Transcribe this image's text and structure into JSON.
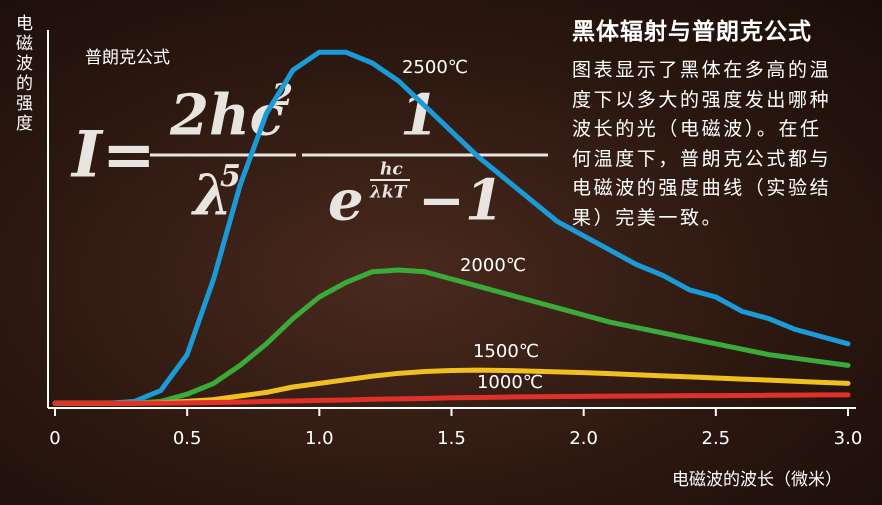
{
  "chart_data": {
    "type": "line",
    "y_label": "电磁波的强度",
    "x_label": "电磁波的波长（微米）",
    "formula_label": "普朗克公式",
    "formula": {
      "lhs": "I=",
      "num1": "2hc",
      "num1_sup": "2",
      "den1": "λ",
      "den1_sup": "5",
      "num2": "1",
      "den2_base": "e",
      "exp_num": "hc",
      "exp_den": "λkT",
      "den2_tail": "−1"
    },
    "x": [
      0,
      0.1,
      0.2,
      0.3,
      0.4,
      0.5,
      0.6,
      0.7,
      0.8,
      0.9,
      1.0,
      1.1,
      1.2,
      1.3,
      1.4,
      1.5,
      1.6,
      1.7,
      1.8,
      1.9,
      2.0,
      2.1,
      2.2,
      2.3,
      2.4,
      2.5,
      2.6,
      2.7,
      2.8,
      2.9,
      3.0
    ],
    "series": [
      {
        "name": "2500℃",
        "color": "#1a9ad6",
        "values": [
          0.5,
          0.5,
          0.5,
          1,
          4,
          14,
          35,
          61,
          81,
          93,
          98,
          98,
          95,
          90,
          83,
          76,
          69,
          63,
          57,
          51,
          47,
          43,
          39,
          36,
          32,
          30,
          26,
          24,
          21,
          19,
          17
        ]
      },
      {
        "name": "2000℃",
        "color": "#3aaa3a",
        "values": [
          0.5,
          0.5,
          0.5,
          0.5,
          1,
          3,
          6,
          11,
          17,
          24,
          30,
          34,
          37,
          37.5,
          37,
          35,
          33,
          31,
          29,
          27,
          25,
          23,
          21.5,
          20,
          18.5,
          17,
          15.5,
          14,
          13,
          12,
          11
        ]
      },
      {
        "name": "1500℃",
        "color": "#f0c020",
        "values": [
          0.5,
          0.5,
          0.5,
          0.5,
          0.6,
          1,
          1.5,
          2.5,
          3.5,
          5,
          6,
          7,
          8,
          8.8,
          9.3,
          9.6,
          9.7,
          9.6,
          9.4,
          9.2,
          9,
          8.7,
          8.4,
          8.1,
          7.8,
          7.5,
          7.2,
          6.9,
          6.6,
          6.3,
          6
        ]
      },
      {
        "name": "1000℃",
        "color": "#e0302a",
        "values": [
          0.5,
          0.5,
          0.5,
          0.5,
          0.5,
          0.6,
          0.7,
          0.8,
          1,
          1.1,
          1.3,
          1.4,
          1.6,
          1.7,
          1.8,
          2,
          2.1,
          2.2,
          2.3,
          2.35,
          2.4,
          2.45,
          2.5,
          2.55,
          2.6,
          2.6,
          2.65,
          2.7,
          2.75,
          2.8,
          2.8
        ]
      }
    ],
    "xlim": [
      0,
      3.0
    ],
    "ylim": [
      0,
      100
    ],
    "xticks": [
      0,
      0.5,
      {
        "value": 1,
        "label": "1.0"
      },
      1.5,
      {
        "value": 2,
        "label": "2.0"
      },
      2.5,
      {
        "value": 3,
        "label": "3.0"
      }
    ],
    "sidebar": {
      "title": "黑体辐射与普朗克公式",
      "body_lines": [
        "图表显示了黑体在多高的温",
        "度下以多大的强度发出哪种",
        "波长的光（电磁波）。在任",
        "何温度下，普朗克公式都与",
        "电磁波的强度曲线（实验结",
        "果）完美一致。"
      ]
    }
  }
}
